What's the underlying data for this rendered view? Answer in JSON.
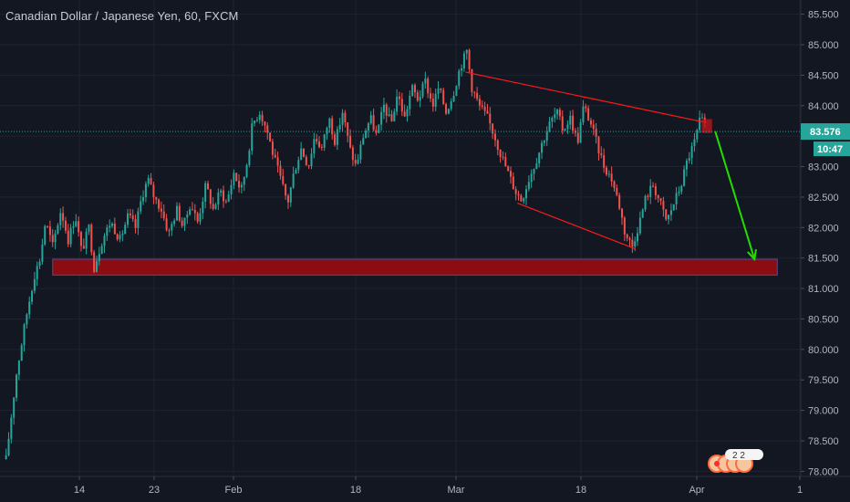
{
  "header": {
    "title": "Canadian Dollar / Japanese Yen, 60, FXCM"
  },
  "price_tag": {
    "value": "83.576",
    "countdown": "10:47"
  },
  "events": {
    "count": "2 2"
  },
  "chart_data": {
    "type": "candlestick",
    "title": "Canadian Dollar / Japanese Yen, 60, FXCM",
    "x_ticks": [
      "14",
      "23",
      "Feb",
      "18",
      "Mar",
      "18",
      "Apr",
      "1"
    ],
    "y_ticks": [
      78.0,
      78.5,
      79.0,
      79.5,
      80.0,
      80.5,
      81.0,
      81.5,
      82.0,
      82.5,
      83.0,
      83.5,
      84.0,
      84.5,
      85.0,
      85.5
    ],
    "ylim": [
      77.75,
      85.75
    ],
    "current_price": 83.576,
    "grid": true,
    "colors": {
      "up": "#26a69a",
      "down": "#ef5350",
      "annotation": "#ff1a1a",
      "zone": "#8b0d12",
      "arrow": "#22dd00",
      "price_tag": "#26a69a"
    },
    "price_path": [
      {
        "x": 0.5,
        "y": 78.2
      },
      {
        "x": 1.5,
        "y": 79.6
      },
      {
        "x": 2.4,
        "y": 80.5
      },
      {
        "x": 3.2,
        "y": 81.2
      },
      {
        "x": 3.8,
        "y": 81.5
      },
      {
        "x": 4.3,
        "y": 82.1
      },
      {
        "x": 5.0,
        "y": 81.7
      },
      {
        "x": 5.8,
        "y": 82.3
      },
      {
        "x": 6.5,
        "y": 81.8
      },
      {
        "x": 7.2,
        "y": 82.2
      },
      {
        "x": 7.8,
        "y": 81.6
      },
      {
        "x": 8.5,
        "y": 82.0
      },
      {
        "x": 9.0,
        "y": 81.35
      },
      {
        "x": 9.8,
        "y": 81.8
      },
      {
        "x": 10.6,
        "y": 82.1
      },
      {
        "x": 11.5,
        "y": 81.8
      },
      {
        "x": 12.3,
        "y": 82.2
      },
      {
        "x": 13.0,
        "y": 82.0
      },
      {
        "x": 13.6,
        "y": 82.5
      },
      {
        "x": 14.2,
        "y": 82.8
      },
      {
        "x": 14.8,
        "y": 82.5
      },
      {
        "x": 15.5,
        "y": 82.3
      },
      {
        "x": 16.2,
        "y": 81.9
      },
      {
        "x": 17.0,
        "y": 82.3
      },
      {
        "x": 17.6,
        "y": 82.0
      },
      {
        "x": 18.3,
        "y": 82.4
      },
      {
        "x": 19.0,
        "y": 82.1
      },
      {
        "x": 19.8,
        "y": 82.7
      },
      {
        "x": 20.5,
        "y": 82.3
      },
      {
        "x": 21.2,
        "y": 82.6
      },
      {
        "x": 21.8,
        "y": 82.4
      },
      {
        "x": 22.5,
        "y": 82.9
      },
      {
        "x": 23.2,
        "y": 82.6
      },
      {
        "x": 23.8,
        "y": 83.1
      },
      {
        "x": 24.3,
        "y": 83.7
      },
      {
        "x": 25.0,
        "y": 83.9
      },
      {
        "x": 25.7,
        "y": 83.6
      },
      {
        "x": 26.3,
        "y": 83.2
      },
      {
        "x": 27.0,
        "y": 82.8
      },
      {
        "x": 27.7,
        "y": 82.4
      },
      {
        "x": 28.3,
        "y": 82.9
      },
      {
        "x": 29.0,
        "y": 83.3
      },
      {
        "x": 29.7,
        "y": 83.0
      },
      {
        "x": 30.3,
        "y": 83.5
      },
      {
        "x": 31.0,
        "y": 83.3
      },
      {
        "x": 31.7,
        "y": 83.8
      },
      {
        "x": 32.3,
        "y": 83.4
      },
      {
        "x": 33.0,
        "y": 83.9
      },
      {
        "x": 33.7,
        "y": 83.3
      },
      {
        "x": 34.3,
        "y": 83.0
      },
      {
        "x": 35.0,
        "y": 83.5
      },
      {
        "x": 35.7,
        "y": 83.8
      },
      {
        "x": 36.3,
        "y": 83.5
      },
      {
        "x": 37.0,
        "y": 84.0
      },
      {
        "x": 37.7,
        "y": 83.7
      },
      {
        "x": 38.3,
        "y": 84.2
      },
      {
        "x": 39.0,
        "y": 83.8
      },
      {
        "x": 39.7,
        "y": 84.3
      },
      {
        "x": 40.3,
        "y": 84.1
      },
      {
        "x": 41.0,
        "y": 84.4
      },
      {
        "x": 41.7,
        "y": 84.0
      },
      {
        "x": 42.3,
        "y": 84.3
      },
      {
        "x": 43.0,
        "y": 83.9
      },
      {
        "x": 43.7,
        "y": 84.2
      },
      {
        "x": 44.3,
        "y": 84.6
      },
      {
        "x": 45.0,
        "y": 84.9
      },
      {
        "x": 45.5,
        "y": 84.3
      },
      {
        "x": 46.2,
        "y": 84.0
      },
      {
        "x": 47.0,
        "y": 83.8
      },
      {
        "x": 47.7,
        "y": 83.5
      },
      {
        "x": 48.3,
        "y": 83.2
      },
      {
        "x": 49.0,
        "y": 82.9
      },
      {
        "x": 49.7,
        "y": 82.6
      },
      {
        "x": 50.3,
        "y": 82.45
      },
      {
        "x": 51.0,
        "y": 82.8
      },
      {
        "x": 51.7,
        "y": 83.1
      },
      {
        "x": 52.3,
        "y": 83.4
      },
      {
        "x": 53.0,
        "y": 83.7
      },
      {
        "x": 53.7,
        "y": 83.9
      },
      {
        "x": 54.3,
        "y": 83.6
      },
      {
        "x": 55.0,
        "y": 83.8
      },
      {
        "x": 55.7,
        "y": 83.4
      },
      {
        "x": 56.3,
        "y": 84.0
      },
      {
        "x": 57.0,
        "y": 83.7
      },
      {
        "x": 57.7,
        "y": 83.3
      },
      {
        "x": 58.3,
        "y": 83.0
      },
      {
        "x": 59.0,
        "y": 82.8
      },
      {
        "x": 59.7,
        "y": 82.4
      },
      {
        "x": 60.3,
        "y": 81.9
      },
      {
        "x": 61.0,
        "y": 81.7
      },
      {
        "x": 61.7,
        "y": 82.1
      },
      {
        "x": 62.3,
        "y": 82.5
      },
      {
        "x": 63.0,
        "y": 82.7
      },
      {
        "x": 63.7,
        "y": 82.4
      },
      {
        "x": 64.3,
        "y": 82.1
      },
      {
        "x": 65.0,
        "y": 82.4
      },
      {
        "x": 65.7,
        "y": 82.7
      },
      {
        "x": 66.3,
        "y": 83.1
      },
      {
        "x": 67.0,
        "y": 83.4
      },
      {
        "x": 67.6,
        "y": 83.8
      },
      {
        "x": 68.2,
        "y": 83.58
      }
    ],
    "annotations": {
      "upper_trendline": [
        {
          "x": 44.9,
          "y": 84.55
        },
        {
          "x": 68.2,
          "y": 83.72
        }
      ],
      "lower_trendline": [
        {
          "x": 49.9,
          "y": 82.4
        },
        {
          "x": 61.3,
          "y": 81.65
        }
      ],
      "support_zone": {
        "x_from": 5.0,
        "x_to": 75.0,
        "y_from": 81.22,
        "y_to": 81.48
      },
      "marker_box": {
        "x_from": 67.7,
        "x_to": 68.7,
        "y_from": 83.55,
        "y_to": 83.78
      },
      "arrow": [
        {
          "x": 69.0,
          "y": 83.58
        },
        {
          "x": 72.8,
          "y": 81.48
        }
      ]
    }
  }
}
